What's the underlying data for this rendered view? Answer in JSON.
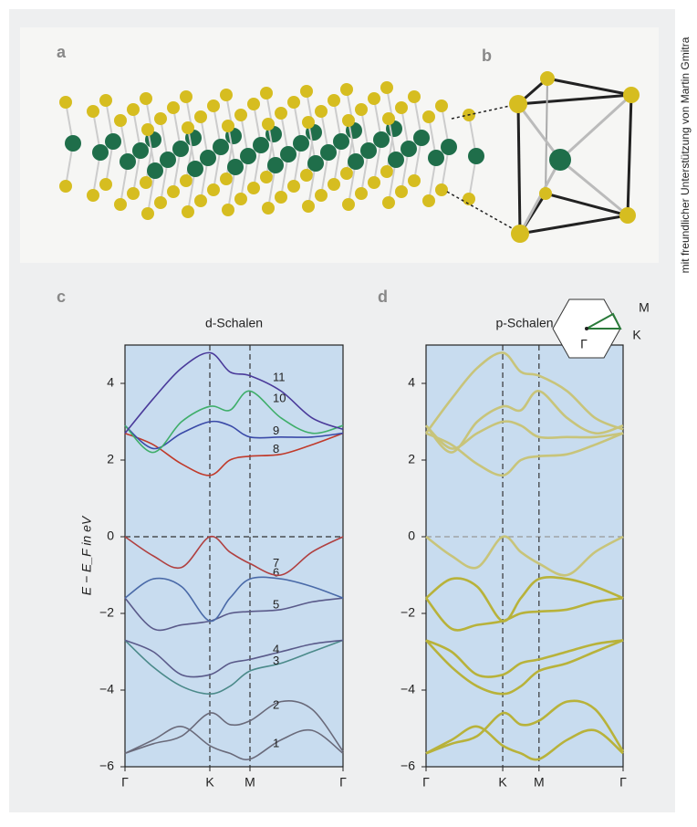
{
  "panel_labels": [
    "a",
    "b",
    "c",
    "d"
  ],
  "credit": "mit freundlicher Unterstützung von Martin Gmitra",
  "bz_labels": [
    "M",
    "K",
    "Γ"
  ],
  "chart_data": [
    {
      "type": "line",
      "title": "d-Schalen",
      "y_label": "E − E_F in eV",
      "line_width": 1.6,
      "x": [
        0,
        0.31,
        0.62,
        0.93,
        1.15,
        1.37,
        1.71,
        2.05,
        2.39
      ],
      "xlim": [
        0,
        2.39
      ],
      "xticks": [
        {
          "value": 0,
          "label": "Γ"
        },
        {
          "value": 0.93,
          "label": "K"
        },
        {
          "value": 1.37,
          "label": "M"
        },
        {
          "value": 2.39,
          "label": "Γ"
        }
      ],
      "ylim": [
        -6,
        5
      ],
      "yticks": [
        {
          "value": -6,
          "label": "−6"
        },
        {
          "value": -4,
          "label": "−4"
        },
        {
          "value": -2,
          "label": "−2"
        },
        0,
        2,
        4
      ],
      "series": [
        {
          "name": "1",
          "color": "#6a6a7a",
          "values": [
            -5.65,
            -5.3,
            -4.95,
            -5.45,
            -5.65,
            -5.8,
            -5.3,
            -5.05,
            -5.65
          ]
        },
        {
          "name": "2",
          "color": "#6a6a7a",
          "values": [
            -5.65,
            -5.4,
            -5.2,
            -4.6,
            -4.9,
            -4.8,
            -4.3,
            -4.5,
            -5.6
          ]
        },
        {
          "name": "3",
          "color": "#4b8a8a",
          "values": [
            -2.7,
            -3.4,
            -3.9,
            -4.1,
            -3.9,
            -3.5,
            -3.3,
            -3.0,
            -2.7
          ]
        },
        {
          "name": "4",
          "color": "#5a5a8a",
          "values": [
            -2.7,
            -3.0,
            -3.6,
            -3.6,
            -3.3,
            -3.2,
            -3.0,
            -2.8,
            -2.7
          ]
        },
        {
          "name": "5",
          "color": "#5a5a8a",
          "values": [
            -1.6,
            -2.4,
            -2.3,
            -2.2,
            -2.0,
            -1.95,
            -1.9,
            -1.7,
            -1.6
          ]
        },
        {
          "name": "6",
          "color": "#4a6aa8",
          "values": [
            -1.6,
            -1.1,
            -1.3,
            -2.2,
            -1.6,
            -1.1,
            -1.1,
            -1.3,
            -1.6
          ]
        },
        {
          "name": "7",
          "color": "#b04040",
          "values": [
            0,
            -0.5,
            -0.8,
            0,
            -0.4,
            -0.7,
            -1.0,
            -0.4,
            0
          ]
        },
        {
          "name": "8",
          "color": "#c03a2a",
          "values": [
            2.7,
            2.4,
            1.9,
            1.6,
            2.0,
            2.1,
            2.15,
            2.4,
            2.7
          ]
        },
        {
          "name": "9",
          "color": "#3a4aa8",
          "values": [
            2.9,
            2.3,
            2.7,
            3.0,
            2.9,
            2.6,
            2.6,
            2.6,
            2.7
          ]
        },
        {
          "name": "10",
          "color": "#3fae6a",
          "values": [
            2.9,
            2.2,
            3.0,
            3.4,
            3.3,
            3.8,
            3.1,
            2.7,
            2.9
          ]
        },
        {
          "name": "11",
          "color": "#4a3a9a",
          "values": [
            2.7,
            3.6,
            4.4,
            4.8,
            4.3,
            4.2,
            3.8,
            3.1,
            2.8
          ]
        }
      ]
    },
    {
      "type": "line",
      "title": "p-Schalen",
      "line_width": 2.6,
      "x": [
        0,
        0.31,
        0.62,
        0.93,
        1.15,
        1.37,
        1.71,
        2.05,
        2.39
      ],
      "xlim": [
        0,
        2.39
      ],
      "xticks": [
        {
          "value": 0,
          "label": "Γ"
        },
        {
          "value": 0.93,
          "label": "K"
        },
        {
          "value": 1.37,
          "label": "M"
        },
        {
          "value": 2.39,
          "label": "Γ"
        }
      ],
      "ylim": [
        -6,
        5
      ],
      "yticks": [
        {
          "value": -6,
          "label": "−6"
        },
        {
          "value": -4,
          "label": "−4"
        },
        {
          "value": -2,
          "label": "−2"
        },
        0,
        2,
        4
      ],
      "series": [
        {
          "color": "#b8b23a",
          "values": [
            -5.65,
            -5.3,
            -4.95,
            -5.45,
            -5.65,
            -5.8,
            -5.3,
            -5.05,
            -5.65
          ]
        },
        {
          "color": "#b8b23a",
          "values": [
            -5.65,
            -5.4,
            -5.2,
            -4.6,
            -4.9,
            -4.8,
            -4.3,
            -4.5,
            -5.6
          ]
        },
        {
          "color": "#b8b23a",
          "values": [
            -2.7,
            -3.4,
            -3.9,
            -4.1,
            -3.9,
            -3.5,
            -3.3,
            -3.0,
            -2.7
          ]
        },
        {
          "color": "#b8b23a",
          "values": [
            -2.7,
            -3.0,
            -3.6,
            -3.6,
            -3.3,
            -3.2,
            -3.0,
            -2.8,
            -2.7
          ]
        },
        {
          "color": "#b8b23a",
          "values": [
            -1.6,
            -2.4,
            -2.3,
            -2.2,
            -2.0,
            -1.95,
            -1.9,
            -1.7,
            -1.6
          ]
        },
        {
          "color": "#b8b23a",
          "values": [
            -1.6,
            -1.1,
            -1.3,
            -2.2,
            -1.6,
            -1.1,
            -1.1,
            -1.3,
            -1.6
          ]
        },
        {
          "color": "#c8c47a",
          "values": [
            0,
            -0.5,
            -0.8,
            0,
            -0.4,
            -0.7,
            -1.0,
            -0.4,
            0
          ]
        },
        {
          "color": "#c8c47a",
          "values": [
            2.7,
            2.4,
            1.9,
            1.6,
            2.0,
            2.1,
            2.15,
            2.4,
            2.7
          ]
        },
        {
          "color": "#c8c47a",
          "values": [
            2.9,
            2.3,
            2.7,
            3.0,
            2.9,
            2.6,
            2.6,
            2.6,
            2.7
          ]
        },
        {
          "color": "#c8c47a",
          "values": [
            2.9,
            2.2,
            3.0,
            3.4,
            3.3,
            3.8,
            3.1,
            2.7,
            2.9
          ]
        },
        {
          "color": "#c8c47a",
          "values": [
            2.7,
            3.6,
            4.4,
            4.8,
            4.3,
            4.2,
            3.8,
            3.1,
            2.8
          ]
        }
      ]
    }
  ]
}
